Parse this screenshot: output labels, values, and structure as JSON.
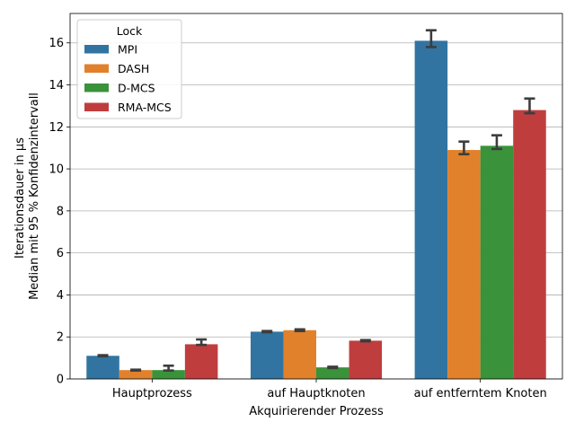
{
  "chart_data": {
    "type": "bar",
    "categories": [
      "Hauptprozess",
      "auf Hauptknoten",
      "auf entferntem Knoten"
    ],
    "xlabel": "Akquirierender Prozess",
    "ylabel_lines": [
      "Iterationsdauer in µs",
      "Median mit 95 % Konfidenzintervall"
    ],
    "ylim": [
      0,
      17.4
    ],
    "yticks": [
      0,
      2,
      4,
      6,
      8,
      10,
      12,
      14,
      16
    ],
    "grid": "horizontal",
    "legend": {
      "title": "Lock",
      "placement": "top-left"
    },
    "series": [
      {
        "name": "MPI",
        "color": "#3274a1",
        "values": [
          1.1,
          2.25,
          16.1
        ],
        "ci": [
          [
            1.08,
            1.13
          ],
          [
            2.22,
            2.28
          ],
          [
            15.8,
            16.6
          ]
        ]
      },
      {
        "name": "DASH",
        "color": "#e1812c",
        "values": [
          0.42,
          2.32,
          10.9
        ],
        "ci": [
          [
            0.4,
            0.44
          ],
          [
            2.28,
            2.36
          ],
          [
            10.7,
            11.3
          ]
        ]
      },
      {
        "name": "D-MCS",
        "color": "#3a923a",
        "values": [
          0.42,
          0.55,
          11.1
        ],
        "ci": [
          [
            0.4,
            0.63
          ],
          [
            0.52,
            0.58
          ],
          [
            10.95,
            11.6
          ]
        ]
      },
      {
        "name": "RMA-MCS",
        "color": "#c03d3e",
        "values": [
          1.65,
          1.82,
          12.8
        ],
        "ci": [
          [
            1.62,
            1.88
          ],
          [
            1.79,
            1.85
          ],
          [
            12.65,
            13.35
          ]
        ]
      }
    ]
  }
}
